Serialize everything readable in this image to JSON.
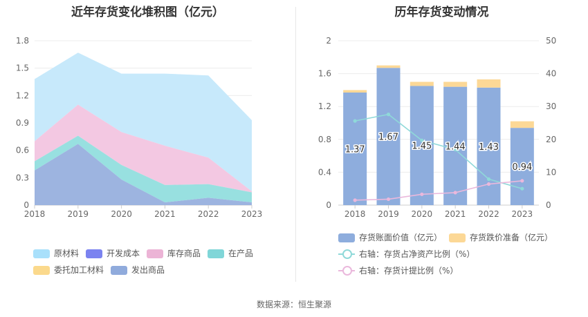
{
  "left": {
    "title": "近年存货变化堆积图（亿元）",
    "chart_data": {
      "type": "area",
      "stacked": true,
      "title": "近年存货变化堆积图（亿元）",
      "categories": [
        "2018",
        "2019",
        "2020",
        "2021",
        "2022",
        "2023"
      ],
      "ylim": [
        0,
        1.8
      ],
      "yticks": [
        "0",
        "0.3",
        "0.6",
        "0.9",
        "1.2",
        "1.5",
        "1.8"
      ],
      "series": [
        {
          "name": "发出商品",
          "color": "#9db4e0",
          "values": [
            0.38,
            0.67,
            0.28,
            0.03,
            0.08,
            0.03
          ]
        },
        {
          "name": "委托加工材料",
          "color": "#fbd98c",
          "values": [
            0,
            0,
            0,
            0,
            0,
            0
          ]
        },
        {
          "name": "在产品",
          "color": "#98e0e0",
          "values": [
            0.1,
            0.09,
            0.16,
            0.19,
            0.15,
            0.11
          ]
        },
        {
          "name": "开发成本",
          "color": "#7b83f0",
          "values": [
            0,
            0,
            0,
            0,
            0,
            0
          ]
        },
        {
          "name": "库存商品",
          "color": "#f3c8e2",
          "values": [
            0.22,
            0.34,
            0.36,
            0.43,
            0.29,
            0.01
          ]
        },
        {
          "name": "原材料",
          "color": "#c7e9fb",
          "values": [
            0.68,
            0.57,
            0.64,
            0.79,
            0.9,
            0.78
          ]
        }
      ],
      "legend": [
        {
          "name": "原材料",
          "color": "#a9e0fb"
        },
        {
          "name": "开发成本",
          "color": "#7b83f0"
        },
        {
          "name": "库存商品",
          "color": "#ecb4d6"
        },
        {
          "name": "在产品",
          "color": "#80d6d8"
        },
        {
          "name": "委托加工材料",
          "color": "#fbd98c"
        },
        {
          "name": "发出商品",
          "color": "#90abdc"
        }
      ],
      "legend_position": "bottom"
    }
  },
  "right": {
    "title": "历年存货变动情况",
    "chart_data": {
      "type": "bar",
      "title": "历年存货变动情况",
      "categories": [
        "2018",
        "2019",
        "2020",
        "2021",
        "2022",
        "2023"
      ],
      "ylim": [
        0,
        2
      ],
      "yticks": [
        "0",
        "0.4",
        "0.8",
        "1.2",
        "1.6",
        "2"
      ],
      "y2lim": [
        0,
        50
      ],
      "y2ticks": [
        "0",
        "10",
        "20",
        "30",
        "40",
        "50"
      ],
      "bars": [
        {
          "name": "存货账面价值（亿元）",
          "color": "#8eaddd",
          "values": [
            1.37,
            1.67,
            1.45,
            1.44,
            1.43,
            0.94
          ],
          "labels": [
            "1.37",
            "1.67",
            "1.45",
            "1.44",
            "1.43",
            "0.94"
          ]
        },
        {
          "name": "存货跌价准备（亿元）",
          "color": "#fcd896",
          "values": [
            0.03,
            0.03,
            0.05,
            0.06,
            0.1,
            0.08
          ]
        }
      ],
      "lines": [
        {
          "name": "右轴：存货占净资产比例（%）",
          "color": "#8fd9d9",
          "axis": "right",
          "values": [
            25.6,
            27.6,
            19.7,
            16.9,
            7.9,
            5.0
          ]
        },
        {
          "name": "右轴：存货计提比例（%）",
          "color": "#eab8dc",
          "axis": "right",
          "values": [
            1.5,
            1.8,
            3.3,
            3.8,
            6.4,
            7.4
          ]
        }
      ],
      "legend_position": "bottom"
    }
  },
  "footer": {
    "source": "数据来源：恒生聚源"
  }
}
